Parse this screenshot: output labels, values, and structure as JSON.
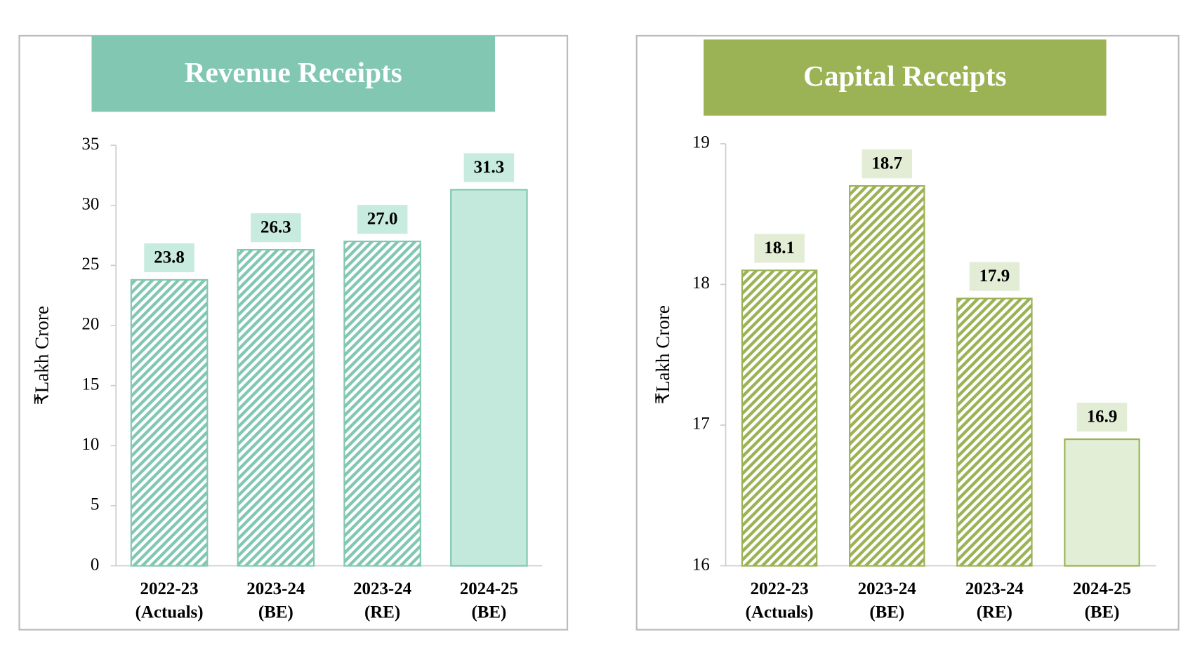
{
  "chart_data": [
    {
      "type": "bar",
      "title": "Revenue Receipts",
      "y_label": "₹Lakh Crore",
      "categories": [
        [
          "2022-23",
          "(Actuals)"
        ],
        [
          "2023-24",
          "(BE)"
        ],
        [
          "2023-24",
          "(RE)"
        ],
        [
          "2024-25",
          "(BE)"
        ]
      ],
      "values": [
        23.8,
        26.3,
        27.0,
        31.3
      ],
      "value_labels": [
        "23.8",
        "26.3",
        "27.0",
        "31.3"
      ],
      "hatched": [
        true,
        true,
        true,
        false
      ],
      "color": "#82c7b2",
      "fill_color": "#c2e9dc",
      "label_color": "#c8ebe0",
      "ylim": [
        0,
        35
      ],
      "yticks": [
        0,
        5,
        10,
        15,
        20,
        25,
        30,
        35
      ]
    },
    {
      "type": "bar",
      "title": "Capital Receipts",
      "y_label": "₹Lakh Crore",
      "categories": [
        [
          "2022-23",
          "(Actuals)"
        ],
        [
          "2023-24",
          "(BE)"
        ],
        [
          "2023-24",
          "(RE)"
        ],
        [
          "2024-25",
          "(BE)"
        ]
      ],
      "values": [
        18.1,
        18.7,
        17.9,
        16.9
      ],
      "value_labels": [
        "18.1",
        "18.7",
        "17.9",
        "16.9"
      ],
      "hatched": [
        true,
        true,
        true,
        false
      ],
      "color": "#9bb255",
      "fill_color": "#e3eed6",
      "label_color": "#e3edd6",
      "ylim": [
        16,
        19
      ],
      "yticks": [
        16,
        17,
        18,
        19
      ]
    }
  ]
}
